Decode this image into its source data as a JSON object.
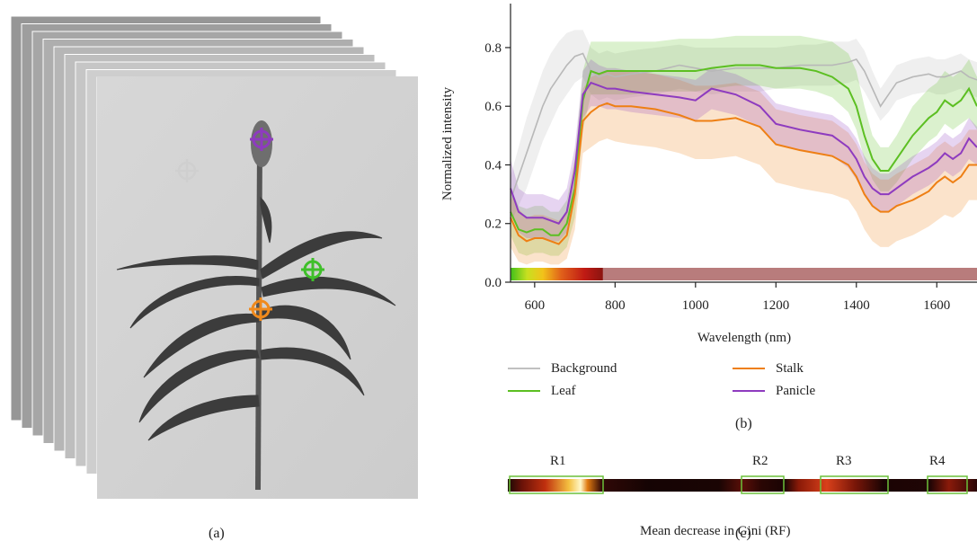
{
  "panel_labels": {
    "a": "(a)",
    "b": "(b)",
    "c": "(c)"
  },
  "image_stack": {
    "description_markers": [
      {
        "name": "Background",
        "color": "#c8c8c8"
      },
      {
        "name": "Panicle",
        "color": "#8e3bbf"
      },
      {
        "name": "Leaf",
        "color": "#3fbf2a"
      },
      {
        "name": "Stalk",
        "color": "#f08a1c"
      }
    ]
  },
  "chart_data": [
    {
      "type": "line",
      "xlabel": "Wavelength (nm)",
      "ylabel": "Normalized intensity",
      "xlim": [
        540,
        1700
      ],
      "ylim": [
        0,
        0.95
      ],
      "xticks": [
        600,
        800,
        1000,
        1200,
        1400,
        1600
      ],
      "yticks": [
        0.0,
        0.2,
        0.4,
        0.6,
        0.8
      ],
      "x": [
        540,
        560,
        580,
        600,
        620,
        640,
        660,
        680,
        700,
        720,
        740,
        760,
        780,
        800,
        840,
        900,
        960,
        1000,
        1040,
        1100,
        1160,
        1200,
        1260,
        1300,
        1340,
        1380,
        1400,
        1420,
        1440,
        1460,
        1480,
        1500,
        1540,
        1580,
        1600,
        1620,
        1640,
        1660,
        1680,
        1700
      ],
      "series": [
        {
          "name": "Background",
          "color": "#b8b8b8",
          "values": [
            0.28,
            0.36,
            0.44,
            0.52,
            0.6,
            0.66,
            0.7,
            0.74,
            0.77,
            0.78,
            0.72,
            0.7,
            0.71,
            0.7,
            0.71,
            0.72,
            0.74,
            0.73,
            0.72,
            0.73,
            0.73,
            0.73,
            0.74,
            0.74,
            0.74,
            0.75,
            0.76,
            0.72,
            0.66,
            0.6,
            0.64,
            0.68,
            0.7,
            0.71,
            0.7,
            0.7,
            0.71,
            0.72,
            0.7,
            0.69
          ],
          "lower": [
            0.2,
            0.26,
            0.32,
            0.4,
            0.48,
            0.54,
            0.6,
            0.64,
            0.68,
            0.7,
            0.64,
            0.62,
            0.63,
            0.62,
            0.63,
            0.64,
            0.66,
            0.65,
            0.64,
            0.65,
            0.65,
            0.66,
            0.67,
            0.67,
            0.67,
            0.68,
            0.69,
            0.65,
            0.6,
            0.55,
            0.58,
            0.62,
            0.64,
            0.65,
            0.64,
            0.64,
            0.65,
            0.66,
            0.64,
            0.63
          ],
          "upper": [
            0.36,
            0.46,
            0.56,
            0.64,
            0.72,
            0.78,
            0.82,
            0.85,
            0.86,
            0.86,
            0.8,
            0.78,
            0.79,
            0.78,
            0.79,
            0.8,
            0.81,
            0.8,
            0.8,
            0.8,
            0.8,
            0.8,
            0.81,
            0.81,
            0.82,
            0.82,
            0.83,
            0.79,
            0.72,
            0.66,
            0.7,
            0.74,
            0.76,
            0.77,
            0.76,
            0.76,
            0.77,
            0.78,
            0.76,
            0.75
          ]
        },
        {
          "name": "Leaf",
          "color": "#5cbf22",
          "values": [
            0.24,
            0.18,
            0.17,
            0.18,
            0.18,
            0.16,
            0.16,
            0.2,
            0.32,
            0.62,
            0.72,
            0.71,
            0.72,
            0.72,
            0.72,
            0.72,
            0.72,
            0.72,
            0.73,
            0.74,
            0.74,
            0.73,
            0.73,
            0.72,
            0.7,
            0.66,
            0.6,
            0.5,
            0.42,
            0.38,
            0.38,
            0.42,
            0.5,
            0.56,
            0.58,
            0.62,
            0.6,
            0.62,
            0.66,
            0.6
          ],
          "lower": [
            0.16,
            0.1,
            0.09,
            0.1,
            0.1,
            0.09,
            0.09,
            0.12,
            0.22,
            0.52,
            0.64,
            0.64,
            0.64,
            0.64,
            0.64,
            0.65,
            0.65,
            0.65,
            0.66,
            0.67,
            0.67,
            0.66,
            0.66,
            0.65,
            0.63,
            0.58,
            0.52,
            0.42,
            0.35,
            0.31,
            0.31,
            0.34,
            0.42,
            0.48,
            0.5,
            0.54,
            0.52,
            0.54,
            0.56,
            0.52
          ],
          "upper": [
            0.32,
            0.26,
            0.25,
            0.26,
            0.26,
            0.24,
            0.24,
            0.28,
            0.42,
            0.72,
            0.82,
            0.82,
            0.82,
            0.82,
            0.82,
            0.82,
            0.83,
            0.83,
            0.83,
            0.84,
            0.84,
            0.84,
            0.84,
            0.83,
            0.82,
            0.78,
            0.72,
            0.6,
            0.5,
            0.46,
            0.46,
            0.5,
            0.6,
            0.66,
            0.68,
            0.72,
            0.7,
            0.72,
            0.76,
            0.7
          ]
        },
        {
          "name": "Stalk",
          "color": "#ee7f14",
          "values": [
            0.22,
            0.16,
            0.14,
            0.15,
            0.15,
            0.14,
            0.13,
            0.16,
            0.3,
            0.55,
            0.58,
            0.6,
            0.61,
            0.6,
            0.6,
            0.59,
            0.57,
            0.55,
            0.55,
            0.56,
            0.53,
            0.47,
            0.45,
            0.44,
            0.43,
            0.4,
            0.36,
            0.3,
            0.26,
            0.24,
            0.24,
            0.26,
            0.28,
            0.31,
            0.34,
            0.36,
            0.34,
            0.36,
            0.4,
            0.4
          ],
          "lower": [
            0.12,
            0.07,
            0.06,
            0.07,
            0.07,
            0.06,
            0.06,
            0.08,
            0.18,
            0.44,
            0.46,
            0.48,
            0.49,
            0.48,
            0.47,
            0.46,
            0.44,
            0.42,
            0.42,
            0.43,
            0.4,
            0.34,
            0.32,
            0.31,
            0.3,
            0.28,
            0.24,
            0.18,
            0.14,
            0.12,
            0.12,
            0.14,
            0.16,
            0.19,
            0.21,
            0.23,
            0.22,
            0.24,
            0.28,
            0.28
          ],
          "upper": [
            0.32,
            0.25,
            0.22,
            0.23,
            0.23,
            0.22,
            0.21,
            0.24,
            0.42,
            0.66,
            0.7,
            0.71,
            0.72,
            0.72,
            0.72,
            0.71,
            0.69,
            0.67,
            0.67,
            0.68,
            0.65,
            0.59,
            0.57,
            0.56,
            0.55,
            0.51,
            0.47,
            0.41,
            0.37,
            0.35,
            0.35,
            0.37,
            0.4,
            0.43,
            0.46,
            0.48,
            0.46,
            0.48,
            0.52,
            0.52
          ]
        },
        {
          "name": "Panicle",
          "color": "#8e3bbf",
          "values": [
            0.32,
            0.24,
            0.22,
            0.22,
            0.22,
            0.21,
            0.2,
            0.24,
            0.38,
            0.64,
            0.68,
            0.67,
            0.66,
            0.66,
            0.65,
            0.64,
            0.63,
            0.62,
            0.66,
            0.64,
            0.6,
            0.54,
            0.52,
            0.51,
            0.5,
            0.46,
            0.42,
            0.36,
            0.32,
            0.3,
            0.3,
            0.32,
            0.36,
            0.39,
            0.41,
            0.44,
            0.42,
            0.44,
            0.49,
            0.46
          ],
          "lower": [
            0.24,
            0.17,
            0.15,
            0.15,
            0.15,
            0.14,
            0.14,
            0.17,
            0.3,
            0.56,
            0.6,
            0.6,
            0.59,
            0.59,
            0.58,
            0.57,
            0.56,
            0.55,
            0.59,
            0.57,
            0.53,
            0.47,
            0.45,
            0.44,
            0.43,
            0.39,
            0.35,
            0.3,
            0.26,
            0.24,
            0.24,
            0.26,
            0.3,
            0.33,
            0.35,
            0.38,
            0.36,
            0.38,
            0.42,
            0.4
          ],
          "upper": [
            0.42,
            0.32,
            0.3,
            0.3,
            0.3,
            0.29,
            0.28,
            0.32,
            0.46,
            0.72,
            0.76,
            0.74,
            0.73,
            0.73,
            0.72,
            0.71,
            0.7,
            0.69,
            0.73,
            0.71,
            0.67,
            0.61,
            0.59,
            0.58,
            0.57,
            0.53,
            0.49,
            0.43,
            0.39,
            0.37,
            0.37,
            0.39,
            0.43,
            0.46,
            0.48,
            0.51,
            0.49,
            0.51,
            0.56,
            0.53
          ]
        }
      ],
      "legend": [
        {
          "label": "Background",
          "color": "#c0c0c0"
        },
        {
          "label": "Stalk",
          "color": "#ee7f14"
        },
        {
          "label": "Leaf",
          "color": "#5cbf22"
        },
        {
          "label": "Panicle",
          "color": "#8e3bbf"
        }
      ],
      "spectrum_bar": {
        "visible_end_nm": 770,
        "nir_color": "#b87c7c"
      }
    },
    {
      "type": "heatmap",
      "xlabel": "Mean decrease in Gini (RF)",
      "regions": [
        {
          "label": "R1",
          "start_nm": 540,
          "end_nm": 770
        },
        {
          "label": "R2",
          "start_nm": 1130,
          "end_nm": 1235
        },
        {
          "label": "R3",
          "start_nm": 1300,
          "end_nm": 1470
        },
        {
          "label": "R4",
          "start_nm": 1600,
          "end_nm": 1700
        }
      ],
      "box_color": "#6cc03a"
    }
  ]
}
